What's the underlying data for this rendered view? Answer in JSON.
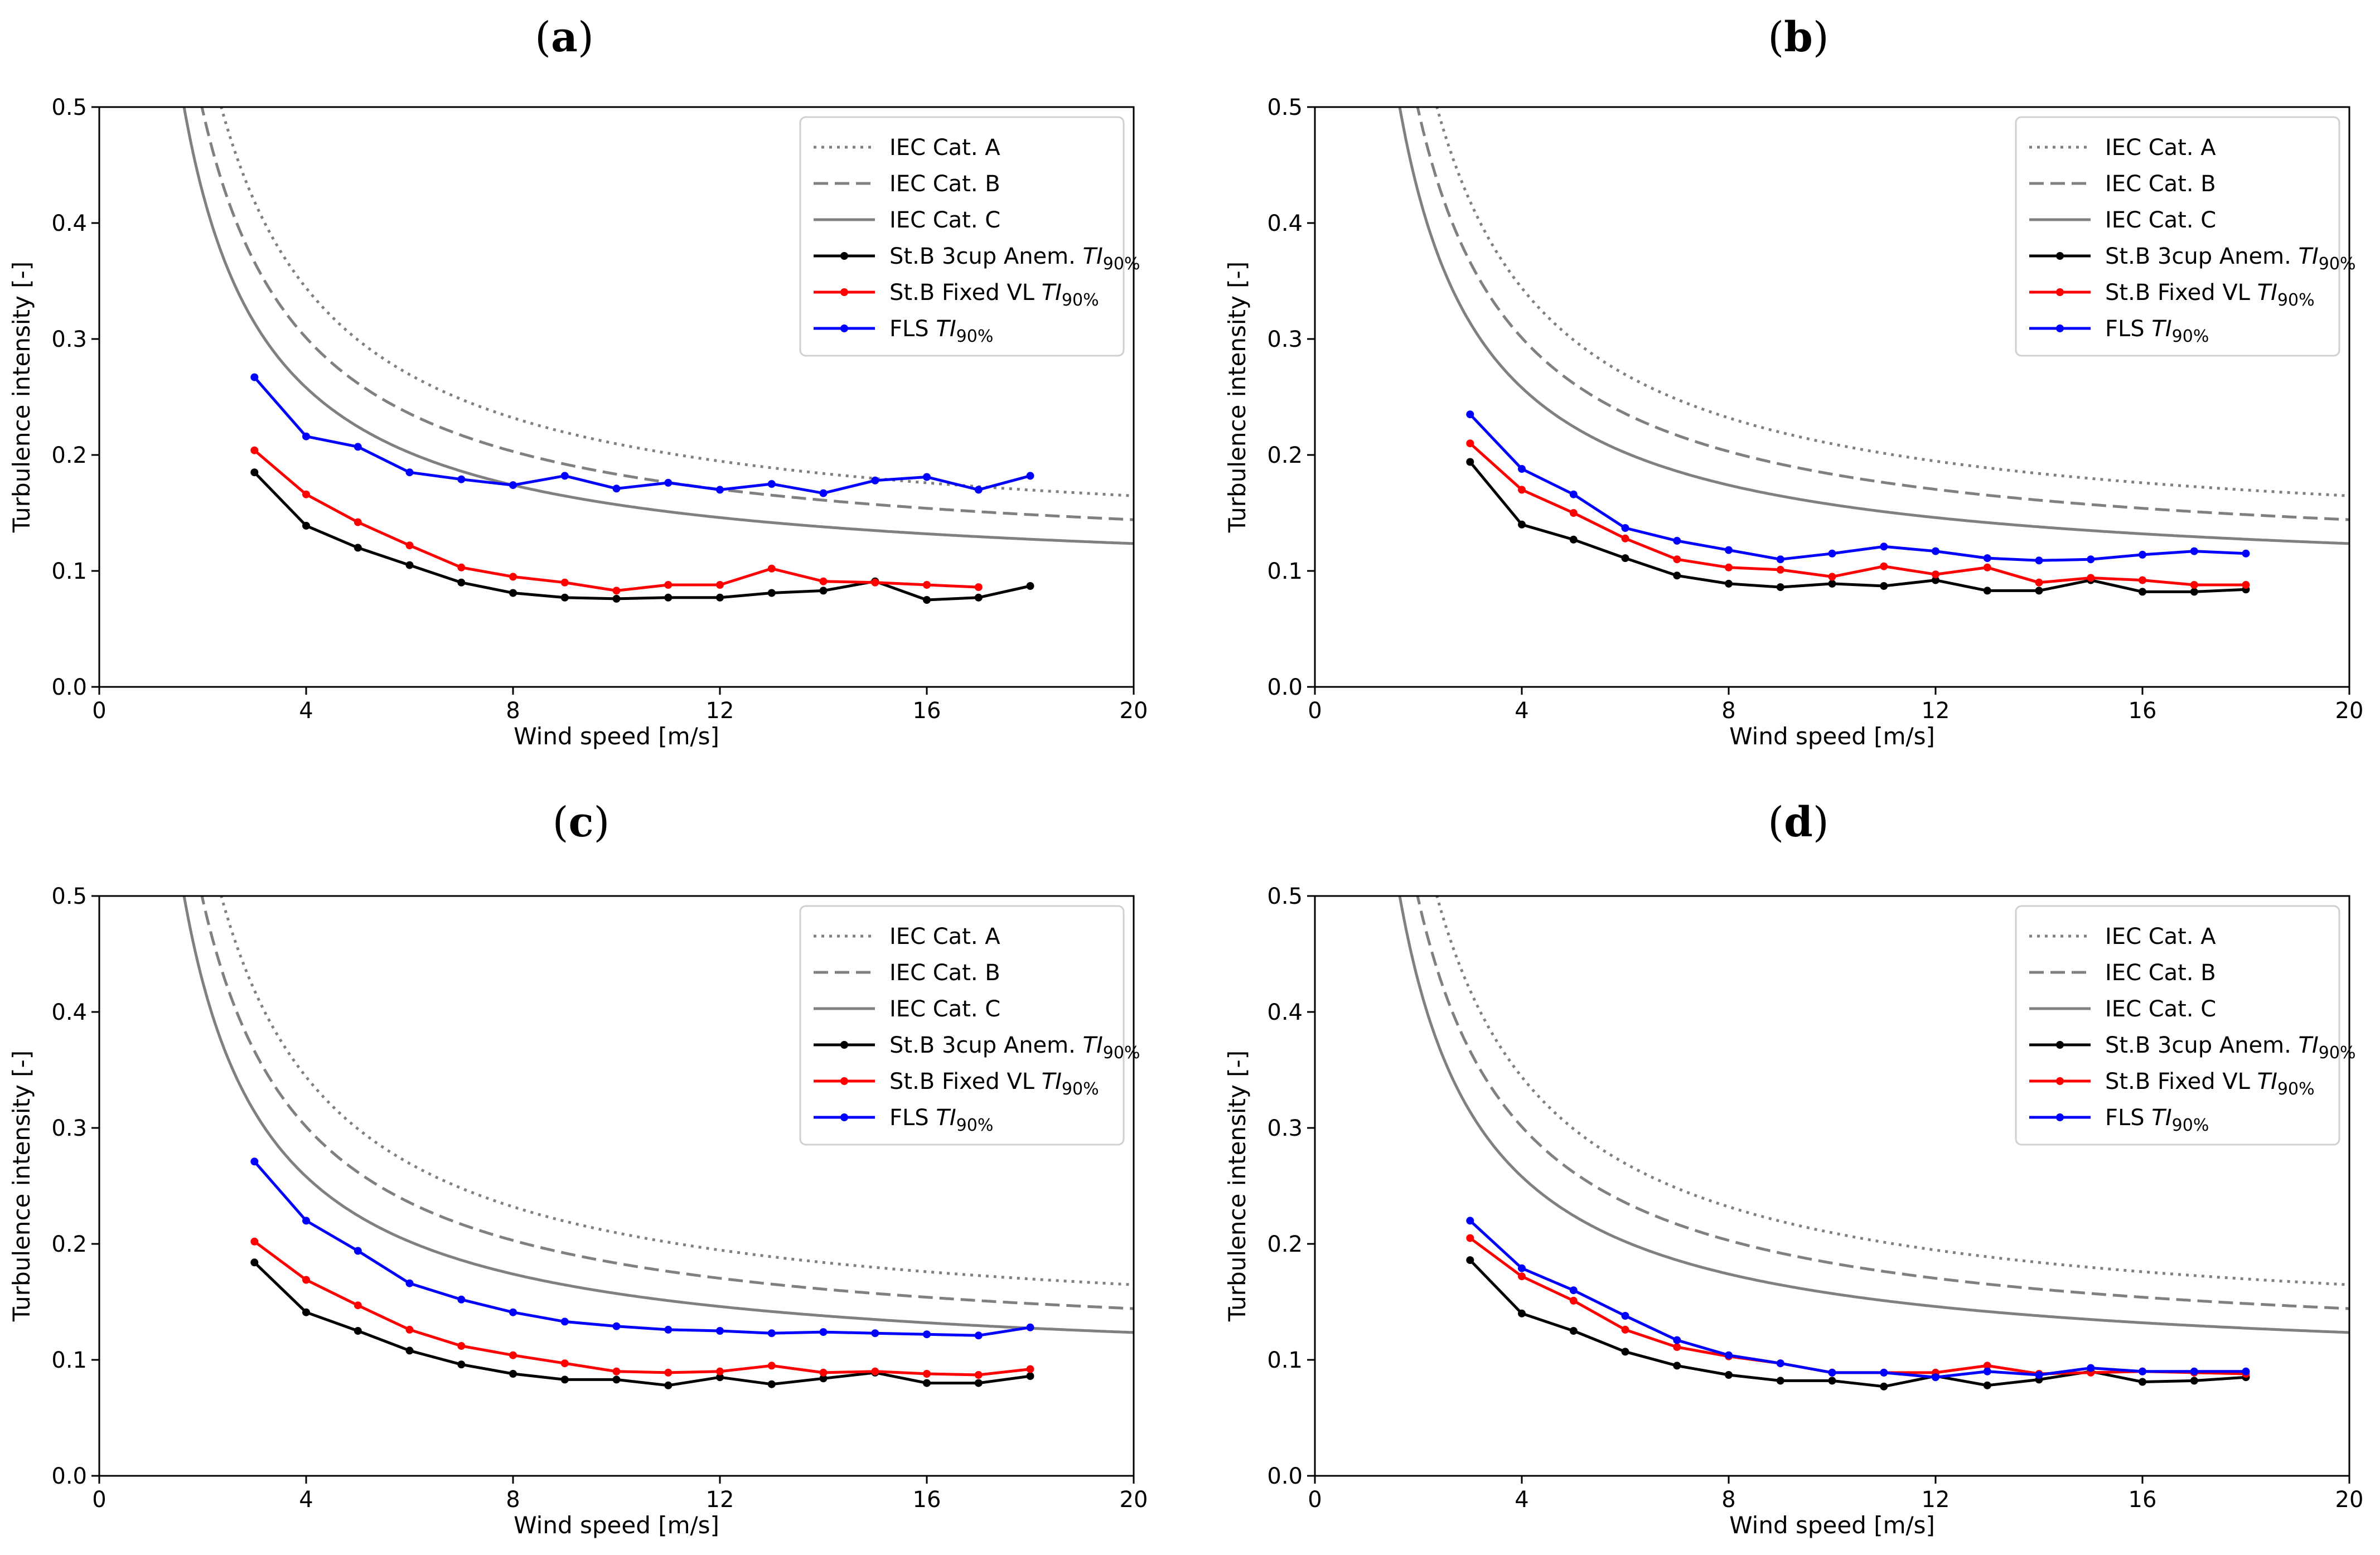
{
  "figure": {
    "x_tick_labels": [
      "0",
      "4",
      "8",
      "12",
      "16",
      "20"
    ],
    "y_tick_labels": [
      "0.0",
      "0.1",
      "0.2",
      "0.3",
      "0.4",
      "0.5"
    ],
    "xlabel": "Wind speed [m/s]",
    "ylabel": "Turbulence intensity [-]",
    "legend_texts": {
      "iec_a": "IEC Cat. A",
      "iec_b": "IEC Cat. B",
      "iec_c": "IEC Cat. C",
      "cup": "St.B 3cup Anem. ",
      "vl": "St.B Fixed VL ",
      "fls": "FLS ",
      "ti": "TI",
      "pct": "90%"
    }
  },
  "colors": {
    "iec": "#808080",
    "cup": "#000000",
    "vl": "#ff0000",
    "fls": "#0000ff"
  },
  "chart_data": [
    {
      "panel": "a",
      "type": "line",
      "xlabel": "Wind speed [m/s]",
      "ylabel": "Turbulence intensity [-]",
      "xlim": [
        0,
        20
      ],
      "ylim": [
        0,
        0.5
      ],
      "legend_position": "top-right",
      "iec_reference": {
        "A": 0.16,
        "B": 0.14,
        "C": 0.12
      },
      "series": [
        {
          "name": "St.B 3cup Anem. TI90%",
          "key": "cup",
          "x": [
            3,
            4,
            5,
            6,
            7,
            8,
            9,
            10,
            11,
            12,
            13,
            14,
            15,
            16,
            17,
            18
          ],
          "values": [
            0.185,
            0.139,
            0.12,
            0.105,
            0.09,
            0.081,
            0.077,
            0.076,
            0.077,
            0.077,
            0.081,
            0.083,
            0.091,
            0.075,
            0.077,
            0.087
          ]
        },
        {
          "name": "St.B Fixed VL TI90%",
          "key": "vl",
          "x": [
            3,
            4,
            5,
            6,
            7,
            8,
            9,
            10,
            11,
            12,
            13,
            14,
            15,
            16,
            17
          ],
          "values": [
            0.204,
            0.166,
            0.142,
            0.122,
            0.103,
            0.095,
            0.09,
            0.083,
            0.088,
            0.088,
            0.102,
            0.091,
            0.09,
            0.088,
            0.086
          ]
        },
        {
          "name": "FLS TI90%",
          "key": "fls",
          "x": [
            3,
            4,
            5,
            6,
            7,
            8,
            9,
            10,
            11,
            12,
            13,
            14,
            15,
            16,
            17,
            18
          ],
          "values": [
            0.267,
            0.216,
            0.207,
            0.185,
            0.179,
            0.174,
            0.182,
            0.171,
            0.176,
            0.17,
            0.175,
            0.167,
            0.178,
            0.181,
            0.17,
            0.182
          ]
        }
      ]
    },
    {
      "panel": "b",
      "type": "line",
      "xlabel": "Wind speed [m/s]",
      "ylabel": "Turbulence intensity [-]",
      "xlim": [
        0,
        20
      ],
      "ylim": [
        0,
        0.5
      ],
      "legend_position": "top-right",
      "iec_reference": {
        "A": 0.16,
        "B": 0.14,
        "C": 0.12
      },
      "series": [
        {
          "name": "St.B 3cup Anem. TI90%",
          "key": "cup",
          "x": [
            3,
            4,
            5,
            6,
            7,
            8,
            9,
            10,
            11,
            12,
            13,
            14,
            15,
            16,
            17,
            18
          ],
          "values": [
            0.194,
            0.14,
            0.127,
            0.111,
            0.096,
            0.089,
            0.086,
            0.089,
            0.087,
            0.092,
            0.083,
            0.083,
            0.092,
            0.082,
            0.082,
            0.084
          ]
        },
        {
          "name": "St.B Fixed VL TI90%",
          "key": "vl",
          "x": [
            3,
            4,
            5,
            6,
            7,
            8,
            9,
            10,
            11,
            12,
            13,
            14,
            15,
            16,
            17,
            18
          ],
          "values": [
            0.21,
            0.17,
            0.15,
            0.128,
            0.11,
            0.103,
            0.101,
            0.095,
            0.104,
            0.097,
            0.103,
            0.09,
            0.094,
            0.092,
            0.088,
            0.088
          ]
        },
        {
          "name": "FLS TI90%",
          "key": "fls",
          "x": [
            3,
            4,
            5,
            6,
            7,
            8,
            9,
            10,
            11,
            12,
            13,
            14,
            15,
            16,
            17,
            18
          ],
          "values": [
            0.235,
            0.188,
            0.166,
            0.137,
            0.126,
            0.118,
            0.11,
            0.115,
            0.121,
            0.117,
            0.111,
            0.109,
            0.11,
            0.114,
            0.117,
            0.115
          ]
        }
      ]
    },
    {
      "panel": "c",
      "type": "line",
      "xlabel": "Wind speed [m/s]",
      "ylabel": "Turbulence intensity [-]",
      "xlim": [
        0,
        20
      ],
      "ylim": [
        0,
        0.5
      ],
      "legend_position": "top-right",
      "iec_reference": {
        "A": 0.16,
        "B": 0.14,
        "C": 0.12
      },
      "series": [
        {
          "name": "St.B 3cup Anem. TI90%",
          "key": "cup",
          "x": [
            3,
            4,
            5,
            6,
            7,
            8,
            9,
            10,
            11,
            12,
            13,
            14,
            15,
            16,
            17,
            18
          ],
          "values": [
            0.184,
            0.141,
            0.125,
            0.108,
            0.096,
            0.088,
            0.083,
            0.083,
            0.078,
            0.085,
            0.079,
            0.084,
            0.089,
            0.08,
            0.08,
            0.086
          ]
        },
        {
          "name": "St.B Fixed VL TI90%",
          "key": "vl",
          "x": [
            3,
            4,
            5,
            6,
            7,
            8,
            9,
            10,
            11,
            12,
            13,
            14,
            15,
            16,
            17,
            18
          ],
          "values": [
            0.202,
            0.169,
            0.147,
            0.126,
            0.112,
            0.104,
            0.097,
            0.09,
            0.089,
            0.09,
            0.095,
            0.089,
            0.09,
            0.088,
            0.087,
            0.092
          ]
        },
        {
          "name": "FLS TI90%",
          "key": "fls",
          "x": [
            3,
            4,
            5,
            6,
            7,
            8,
            9,
            10,
            11,
            12,
            13,
            14,
            15,
            16,
            17,
            18
          ],
          "values": [
            0.271,
            0.22,
            0.194,
            0.166,
            0.152,
            0.141,
            0.133,
            0.129,
            0.126,
            0.125,
            0.123,
            0.124,
            0.123,
            0.122,
            0.121,
            0.128
          ]
        }
      ]
    },
    {
      "panel": "d",
      "type": "line",
      "xlabel": "Wind speed [m/s]",
      "ylabel": "Turbulence intensity [-]",
      "xlim": [
        0,
        20
      ],
      "ylim": [
        0,
        0.5
      ],
      "legend_position": "top-right",
      "iec_reference": {
        "A": 0.16,
        "B": 0.14,
        "C": 0.12
      },
      "series": [
        {
          "name": "St.B 3cup Anem. TI90%",
          "key": "cup",
          "x": [
            3,
            4,
            5,
            6,
            7,
            8,
            9,
            10,
            11,
            12,
            13,
            14,
            15,
            16,
            17,
            18
          ],
          "values": [
            0.186,
            0.14,
            0.125,
            0.107,
            0.095,
            0.087,
            0.082,
            0.082,
            0.077,
            0.086,
            0.078,
            0.083,
            0.09,
            0.081,
            0.082,
            0.085
          ]
        },
        {
          "name": "St.B Fixed VL TI90%",
          "key": "vl",
          "x": [
            3,
            4,
            5,
            6,
            7,
            8,
            9,
            10,
            11,
            12,
            13,
            14,
            15,
            16,
            17,
            18
          ],
          "values": [
            0.205,
            0.172,
            0.151,
            0.126,
            0.111,
            0.103,
            0.097,
            0.089,
            0.089,
            0.089,
            0.095,
            0.088,
            0.089,
            0.09,
            0.089,
            0.088
          ]
        },
        {
          "name": "FLS TI90%",
          "key": "fls",
          "x": [
            3,
            4,
            5,
            6,
            7,
            8,
            9,
            10,
            11,
            12,
            13,
            14,
            15,
            16,
            17,
            18
          ],
          "values": [
            0.22,
            0.179,
            0.16,
            0.138,
            0.117,
            0.104,
            0.097,
            0.089,
            0.089,
            0.085,
            0.09,
            0.087,
            0.093,
            0.09,
            0.09,
            0.09
          ]
        }
      ]
    }
  ]
}
